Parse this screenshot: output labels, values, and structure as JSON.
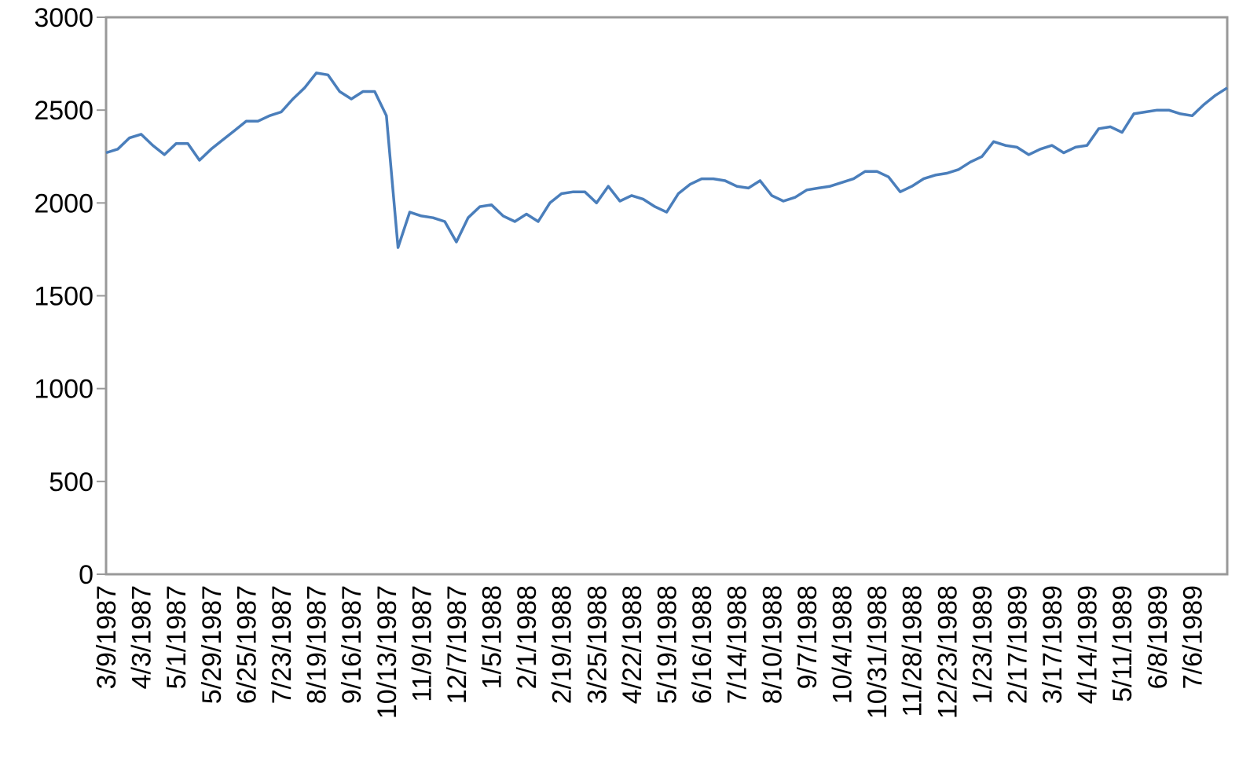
{
  "chart_data": {
    "type": "line",
    "categories": [
      "3/9/1987",
      null,
      null,
      "4/3/1987",
      null,
      null,
      "5/1/1987",
      null,
      null,
      "5/29/1987",
      null,
      null,
      "6/25/1987",
      null,
      null,
      "7/23/1987",
      null,
      null,
      "8/19/1987",
      null,
      null,
      "9/16/1987",
      null,
      null,
      "10/13/1987",
      null,
      null,
      "11/9/1987",
      null,
      null,
      "12/7/1987",
      null,
      null,
      "1/5/1988",
      null,
      null,
      "2/1/1988",
      null,
      null,
      "2/19/1988",
      null,
      null,
      "3/25/1988",
      null,
      null,
      "4/22/1988",
      null,
      null,
      "5/19/1988",
      null,
      null,
      "6/16/1988",
      null,
      null,
      "7/14/1988",
      null,
      null,
      "8/10/1988",
      null,
      null,
      "9/7/1988",
      null,
      null,
      "10/4/1988",
      null,
      null,
      "10/31/1988",
      null,
      null,
      "11/28/1988",
      null,
      null,
      "12/23/1988",
      null,
      null,
      "1/23/1989",
      null,
      null,
      "2/17/1989",
      null,
      null,
      "3/17/1989",
      null,
      null,
      "4/14/1989",
      null,
      null,
      "5/11/1989",
      null,
      null,
      "6/8/1989",
      null,
      null,
      "7/6/1989",
      null,
      null,
      null
    ],
    "values": [
      2270,
      2290,
      2350,
      2370,
      2310,
      2260,
      2320,
      2320,
      2230,
      2290,
      2340,
      2390,
      2440,
      2440,
      2470,
      2490,
      2560,
      2620,
      2700,
      2690,
      2600,
      2560,
      2600,
      2600,
      2470,
      1760,
      1950,
      1930,
      1920,
      1900,
      1790,
      1920,
      1980,
      1990,
      1930,
      1900,
      1940,
      1900,
      2000,
      2050,
      2060,
      2060,
      2000,
      2090,
      2010,
      2040,
      2020,
      1980,
      1950,
      2050,
      2100,
      2130,
      2130,
      2120,
      2090,
      2080,
      2120,
      2040,
      2010,
      2030,
      2070,
      2080,
      2090,
      2110,
      2130,
      2170,
      2170,
      2140,
      2060,
      2090,
      2130,
      2150,
      2160,
      2180,
      2220,
      2250,
      2330,
      2310,
      2300,
      2260,
      2290,
      2310,
      2270,
      2300,
      2310,
      2400,
      2410,
      2380,
      2480,
      2490,
      2500,
      2500,
      2480,
      2470,
      2530,
      2580,
      2620
    ],
    "color": "#4a7ebb",
    "ylim": [
      0,
      3000
    ],
    "yticks": [
      0,
      500,
      1000,
      1500,
      2000,
      2500,
      3000
    ]
  }
}
